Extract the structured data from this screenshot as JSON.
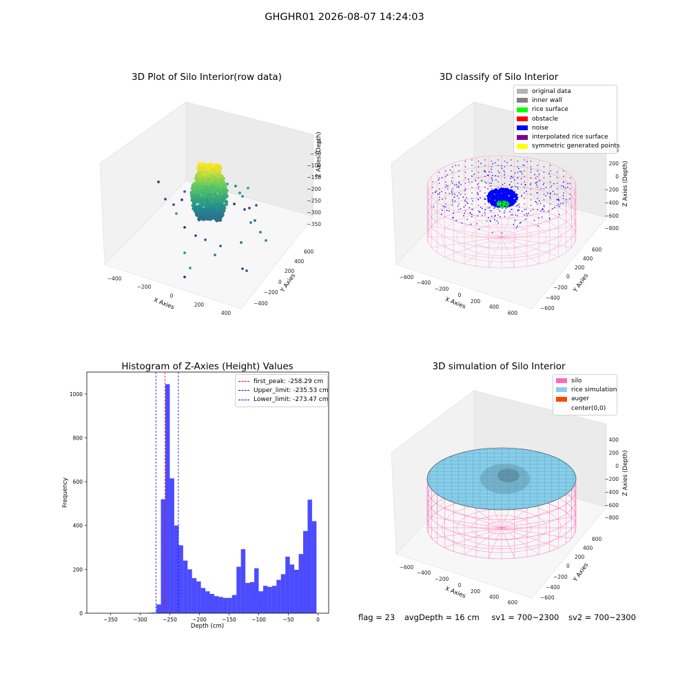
{
  "figure_title": "GHGHR01 2026-08-07 14:24:03",
  "colors": {
    "viridis": [
      "#440154",
      "#3b528b",
      "#21908d",
      "#5ec962",
      "#fde725"
    ],
    "hist_bar": "#0000ff",
    "peak_line": "#ff0000",
    "limit_line": "#0000ff"
  },
  "chart_data": [
    {
      "type": "scatter3d",
      "title": "3D Plot of Silo Interior(row data)",
      "xlabel": "X Axies",
      "ylabel": "Y Axies",
      "zlabel": "Z Axies (Depth)",
      "x_ticks": [
        "−400",
        "−200",
        "0",
        "200",
        "400"
      ],
      "y_ticks": [
        "−400",
        "−200",
        "0",
        "200",
        "400",
        "600"
      ],
      "z_ticks": [
        "0",
        "−50",
        "−100",
        "−150",
        "−200",
        "−250",
        "−300",
        "−350"
      ],
      "colormap": "viridis",
      "description_points": "dense cluster around depth -100 to -330 near center with scattered outliers"
    },
    {
      "type": "scatter3d",
      "title": "3D classify of Silo Interior",
      "xlabel": "X Axies",
      "ylabel": "Y Axies",
      "zlabel": "Z Axies (Depth)",
      "x_ticks": [
        "−600",
        "−400",
        "−200",
        "0",
        "200",
        "400",
        "600"
      ],
      "y_ticks": [
        "−600",
        "−400",
        "−200",
        "0",
        "200",
        "400",
        "600"
      ],
      "z_ticks": [
        "400",
        "200",
        "0",
        "−200",
        "−400",
        "−600",
        "−800"
      ],
      "legend": [
        {
          "label": "original data",
          "color": "#b3b3b3"
        },
        {
          "label": "inner wall",
          "color": "#808080"
        },
        {
          "label": "rice surface",
          "color": "#00ff00"
        },
        {
          "label": "obstacle",
          "color": "#ff0000"
        },
        {
          "label": "noise",
          "color": "#0000ff"
        },
        {
          "label": "interpolated rice surface",
          "color": "#800080"
        },
        {
          "label": "symmetric generated points",
          "color": "#ffff00"
        }
      ]
    },
    {
      "type": "bar",
      "title": "Histogram of Z-Axies (Height) Values",
      "xlabel": "Depth (cm)",
      "ylabel": "Frequency",
      "xlim": [
        -390,
        18
      ],
      "ylim": [
        0,
        1100
      ],
      "x_ticks": [
        -350,
        -300,
        -250,
        -200,
        -150,
        -100,
        -50,
        0
      ],
      "x_tick_labels": [
        "−350",
        "−300",
        "−250",
        "−200",
        "−150",
        "−100",
        "−50",
        "0"
      ],
      "y_ticks": [
        0,
        200,
        400,
        600,
        800,
        1000
      ],
      "y_tick_labels": [
        "0",
        "200",
        "400",
        "600",
        "800",
        "1000"
      ],
      "bin_width": 7.5,
      "bins": [
        {
          "x0": -287.5,
          "value": 2
        },
        {
          "x0": -280,
          "value": 3
        },
        {
          "x0": -272.5,
          "value": 40
        },
        {
          "x0": -265,
          "value": 520
        },
        {
          "x0": -257.5,
          "value": 1045
        },
        {
          "x0": -250,
          "value": 615
        },
        {
          "x0": -242.5,
          "value": 400
        },
        {
          "x0": -235,
          "value": 310
        },
        {
          "x0": -227.5,
          "value": 240
        },
        {
          "x0": -220,
          "value": 200
        },
        {
          "x0": -212.5,
          "value": 160
        },
        {
          "x0": -205,
          "value": 145
        },
        {
          "x0": -197.5,
          "value": 115
        },
        {
          "x0": -190,
          "value": 100
        },
        {
          "x0": -182.5,
          "value": 88
        },
        {
          "x0": -175,
          "value": 78
        },
        {
          "x0": -167.5,
          "value": 74
        },
        {
          "x0": -160,
          "value": 70
        },
        {
          "x0": -152.5,
          "value": 70
        },
        {
          "x0": -145,
          "value": 83
        },
        {
          "x0": -137.5,
          "value": 212
        },
        {
          "x0": -130,
          "value": 292
        },
        {
          "x0": -122.5,
          "value": 138
        },
        {
          "x0": -115,
          "value": 142
        },
        {
          "x0": -107.5,
          "value": 205
        },
        {
          "x0": -100,
          "value": 100
        },
        {
          "x0": -92.5,
          "value": 125
        },
        {
          "x0": -85,
          "value": 120
        },
        {
          "x0": -77.5,
          "value": 125
        },
        {
          "x0": -70,
          "value": 152
        },
        {
          "x0": -62.5,
          "value": 178
        },
        {
          "x0": -55,
          "value": 258
        },
        {
          "x0": -47.5,
          "value": 222
        },
        {
          "x0": -40,
          "value": 198
        },
        {
          "x0": -32.5,
          "value": 270
        },
        {
          "x0": -25,
          "value": 375
        },
        {
          "x0": -17.5,
          "value": 518
        },
        {
          "x0": -10,
          "value": 420
        }
      ],
      "vlines": [
        {
          "label": "first_peak: -258.29 cm",
          "x": -258.29,
          "color": "#ff0000"
        },
        {
          "label": "Upper_limit: -235.53 cm",
          "x": -235.53,
          "color": "#0000ff"
        },
        {
          "label": "Lower_limit: -273.47 cm",
          "x": -273.47,
          "color": "#0000ff"
        }
      ]
    },
    {
      "type": "surface3d",
      "title": "3D simulation of Silo Interior",
      "xlabel": "X Axies",
      "ylabel": "Y Axies",
      "zlabel": "Z Axies (Depth)",
      "x_ticks": [
        "−600",
        "−400",
        "−200",
        "0",
        "200",
        "400",
        "600"
      ],
      "y_ticks": [
        "−600",
        "−400",
        "−200",
        "0",
        "200",
        "400",
        "600"
      ],
      "z_ticks": [
        "400",
        "200",
        "0",
        "−200",
        "−400",
        "−600",
        "−800"
      ],
      "legend": [
        {
          "label": "silo",
          "color": "#ff69b4"
        },
        {
          "label": "rice simulation",
          "color": "#87ceeb"
        },
        {
          "label": "auger",
          "color": "#ff4500"
        },
        {
          "label": "center(0,0)",
          "color": ""
        }
      ]
    }
  ],
  "footer": {
    "flag": "flag = 23",
    "avg_depth": "avgDepth = 16 cm",
    "sv1": "sv1 = 700~2300",
    "sv2": "sv2 = 700~2300"
  }
}
